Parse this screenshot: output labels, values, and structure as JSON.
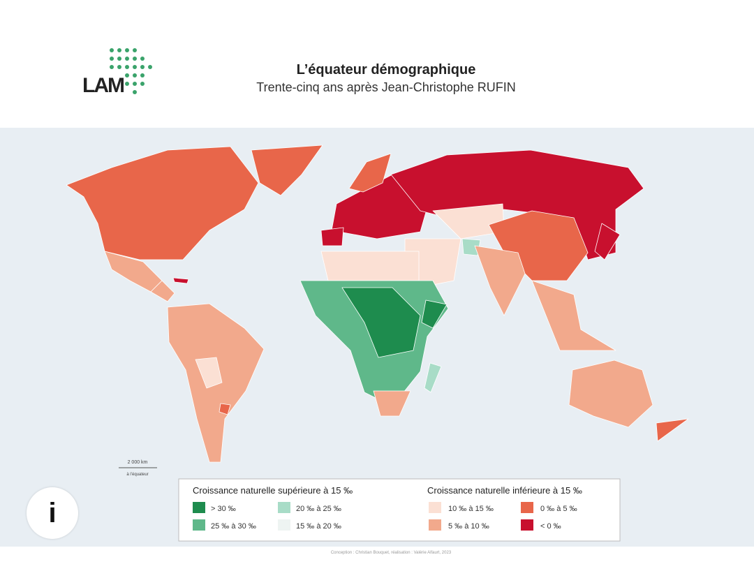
{
  "header": {
    "logo_text": "LAM",
    "title": "L’équateur démographique",
    "subtitle": "Trente-cinq ans après Jean-Christophe RUFIN"
  },
  "scale": {
    "distance": "2 000 km",
    "note": "à l’équateur"
  },
  "legend": {
    "groups": [
      {
        "title": "Croissance naturelle supérieure à 15 ‰",
        "items": [
          "> 30 ‰",
          "25 ‰ à 30 ‰",
          "20 ‰ à 25 ‰",
          "15 ‰ à 20 ‰"
        ]
      },
      {
        "title": "Croissance naturelle inférieure à 15 ‰",
        "items": [
          "10 ‰ à 15 ‰",
          "5 ‰ à 10 ‰",
          "0 ‰ à 5 ‰",
          "< 0 ‰"
        ]
      }
    ]
  },
  "credit": "Conception : Christian Bouquet, réalisation : Valérie Alfaurt, 2023",
  "info_button": "i"
}
